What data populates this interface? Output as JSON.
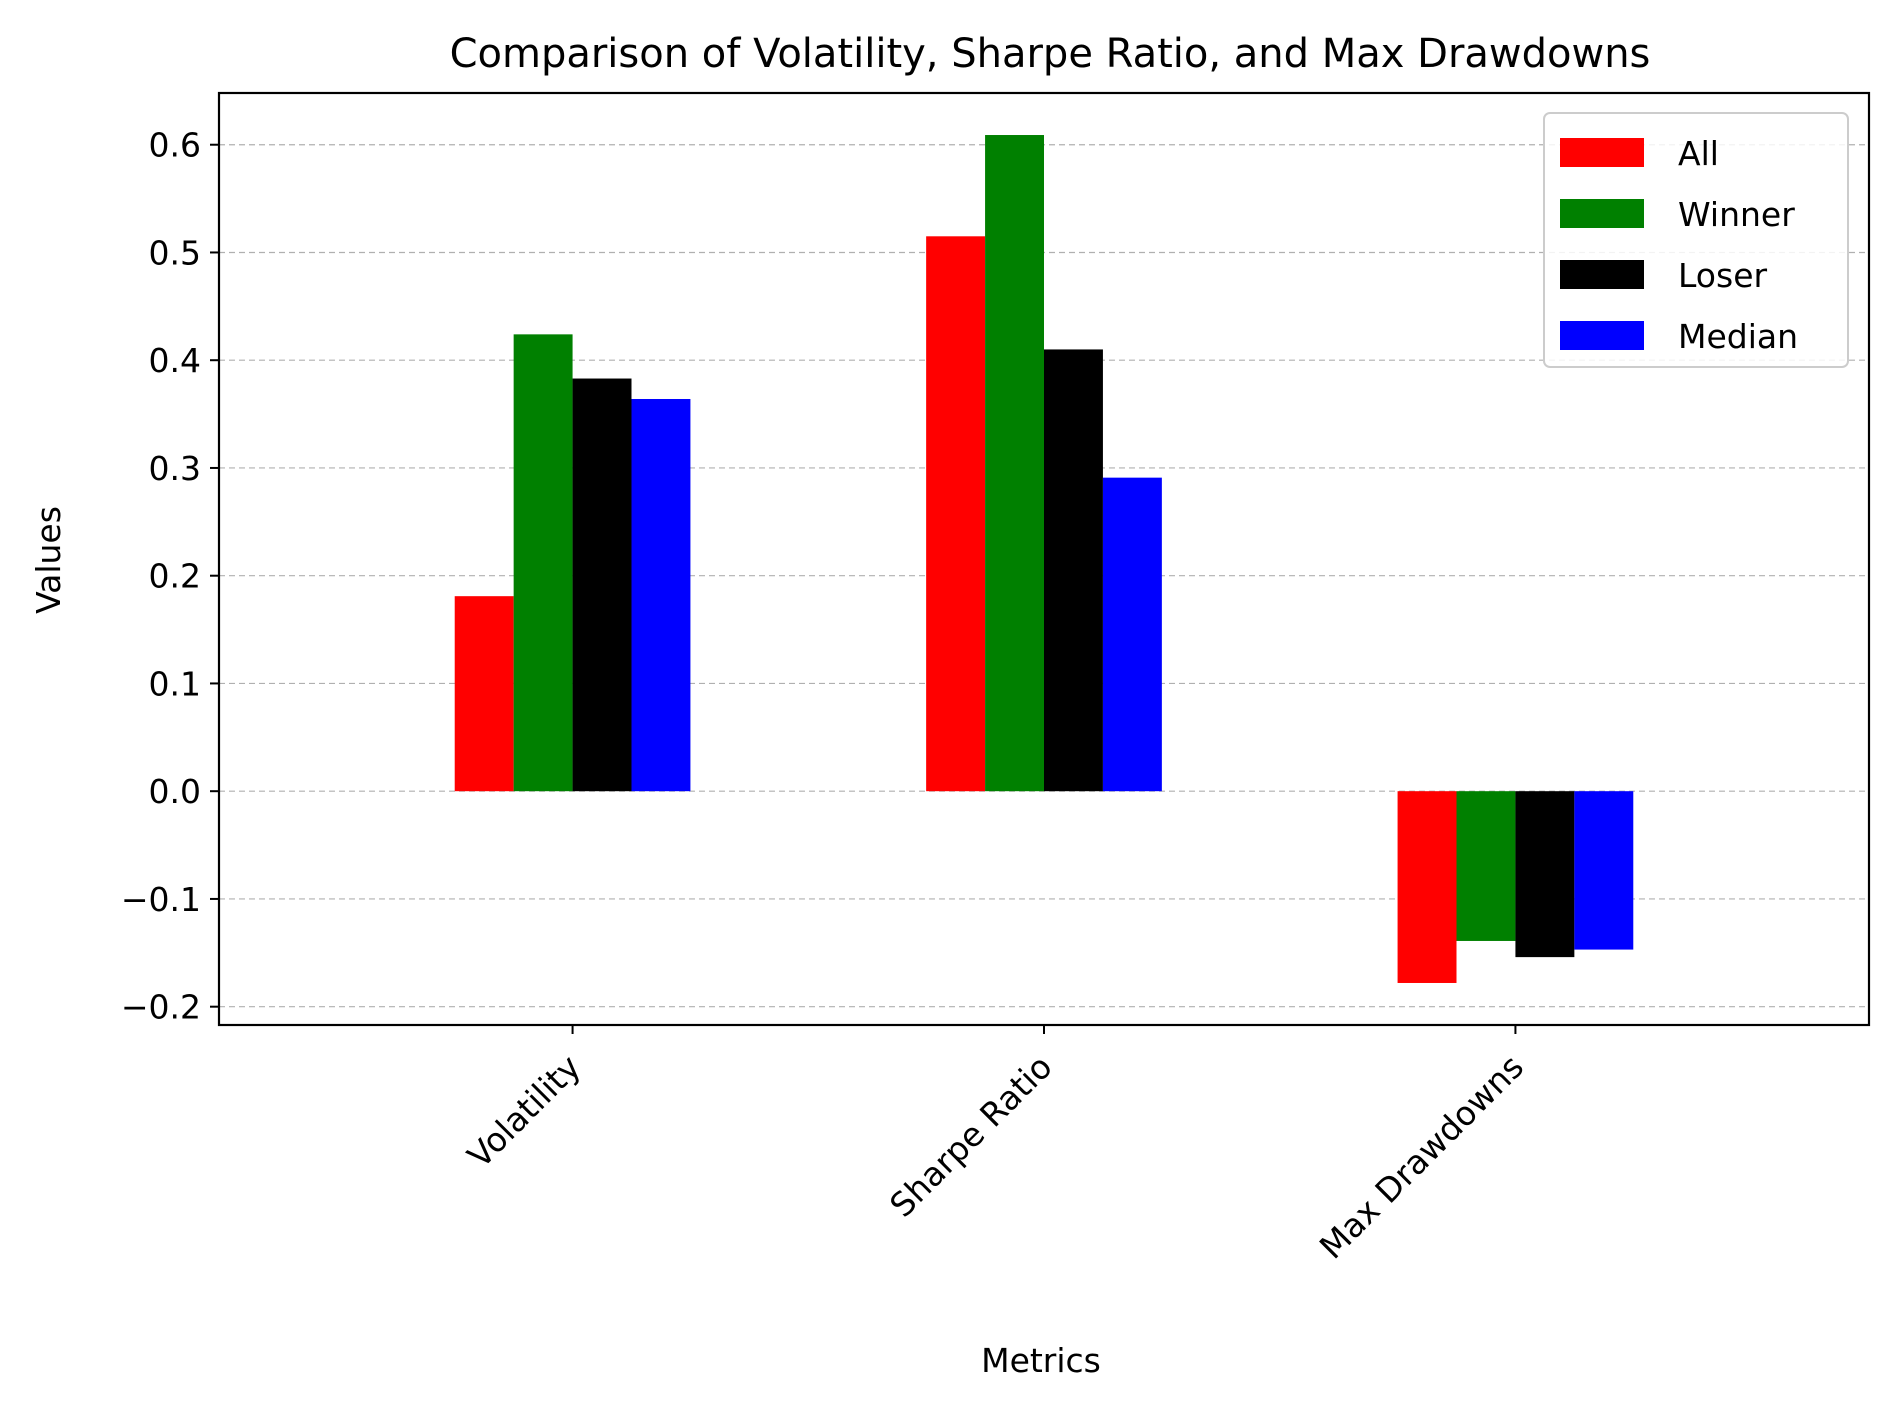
{
  "chart_data": {
    "type": "bar",
    "title": "Comparison of Volatility, Sharpe Ratio, and Max Drawdowns",
    "xlabel": "Metrics",
    "ylabel": "Values",
    "categories": [
      "Volatility",
      "Sharpe Ratio",
      "Max Drawdowns"
    ],
    "series": [
      {
        "name": "All",
        "color": "#ff0000",
        "values": [
          0.181,
          0.515,
          -0.178
        ]
      },
      {
        "name": "Winner",
        "color": "#008000",
        "values": [
          0.424,
          0.609,
          -0.139
        ]
      },
      {
        "name": "Loser",
        "color": "#000000",
        "values": [
          0.383,
          0.41,
          -0.154
        ]
      },
      {
        "name": "Median",
        "color": "#0000ff",
        "values": [
          0.364,
          0.291,
          -0.147
        ]
      }
    ],
    "ylim": [
      -0.217,
      0.648
    ],
    "yticks": [
      -0.2,
      -0.1,
      0.0,
      0.1,
      0.2,
      0.3,
      0.4,
      0.5,
      0.6
    ],
    "ytick_labels": [
      "−0.2",
      "−0.1",
      "0.0",
      "0.1",
      "0.2",
      "0.3",
      "0.4",
      "0.5",
      "0.6"
    ],
    "grid": "horizontal dashed",
    "legend_position": "top-right",
    "xtick_rotation_deg": 45
  }
}
